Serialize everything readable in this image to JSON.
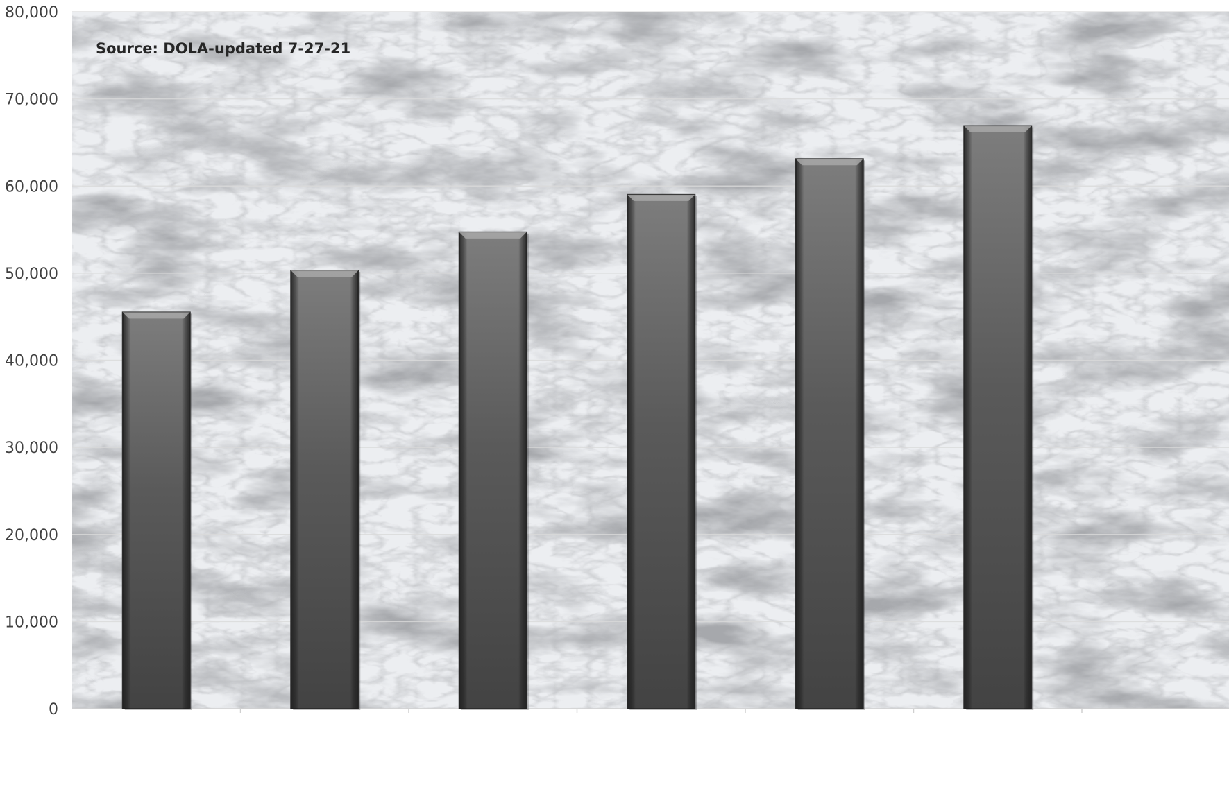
{
  "chart_data": {
    "type": "bar",
    "title": "",
    "xlabel": "",
    "ylabel": "",
    "categories": [
      "",
      "",
      "",
      "",
      "",
      ""
    ],
    "values": [
      45500,
      50300,
      54700,
      59000,
      63100,
      66900
    ],
    "ylim": [
      0,
      80000
    ],
    "y_ticks": [
      "0",
      "10,000",
      "20,000",
      "30,000",
      "40,000",
      "50,000",
      "60,000",
      "70,000",
      "80,000"
    ],
    "annotation": "Source: DOLA-updated 7-27-21",
    "grid": true,
    "legend": "none",
    "background": "marble texture",
    "bar_color": "#555555"
  }
}
